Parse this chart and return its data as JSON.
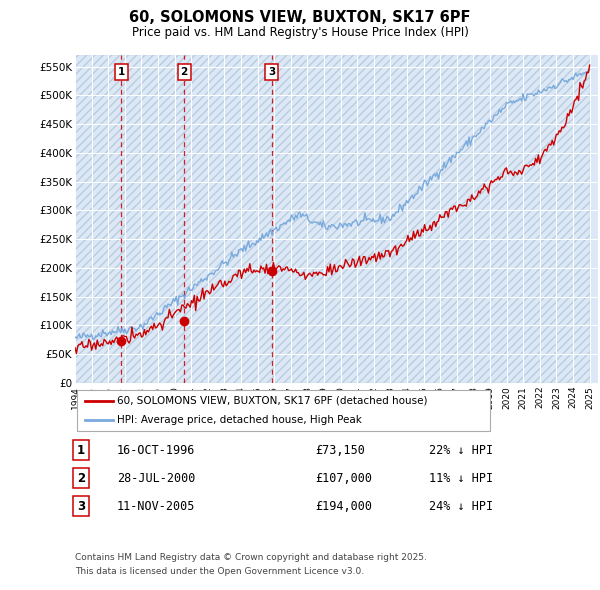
{
  "title": "60, SOLOMONS VIEW, BUXTON, SK17 6PF",
  "subtitle": "Price paid vs. HM Land Registry's House Price Index (HPI)",
  "ylabel_ticks": [
    "£0",
    "£50K",
    "£100K",
    "£150K",
    "£200K",
    "£250K",
    "£300K",
    "£350K",
    "£400K",
    "£450K",
    "£500K",
    "£550K"
  ],
  "ylim": [
    0,
    570000
  ],
  "ytick_values": [
    0,
    50000,
    100000,
    150000,
    200000,
    250000,
    300000,
    350000,
    400000,
    450000,
    500000,
    550000
  ],
  "xlim_start": 1994,
  "xlim_end": 2025.5,
  "purchases": [
    {
      "label": "1",
      "date": "16-OCT-1996",
      "price": 73150,
      "x_year": 1996.79,
      "hpi_pct": "22% ↓ HPI"
    },
    {
      "label": "2",
      "date": "28-JUL-2000",
      "price": 107000,
      "x_year": 2000.57,
      "hpi_pct": "11% ↓ HPI"
    },
    {
      "label": "3",
      "date": "11-NOV-2005",
      "price": 194000,
      "x_year": 2005.86,
      "hpi_pct": "24% ↓ HPI"
    }
  ],
  "legend_line1": "60, SOLOMONS VIEW, BUXTON, SK17 6PF (detached house)",
  "legend_line2": "HPI: Average price, detached house, High Peak",
  "footnote1": "Contains HM Land Registry data © Crown copyright and database right 2025.",
  "footnote2": "This data is licensed under the Open Government Licence v3.0.",
  "red_color": "#cc0000",
  "blue_color": "#7aaadd",
  "bg_color": "#dce8f5",
  "white": "#ffffff"
}
